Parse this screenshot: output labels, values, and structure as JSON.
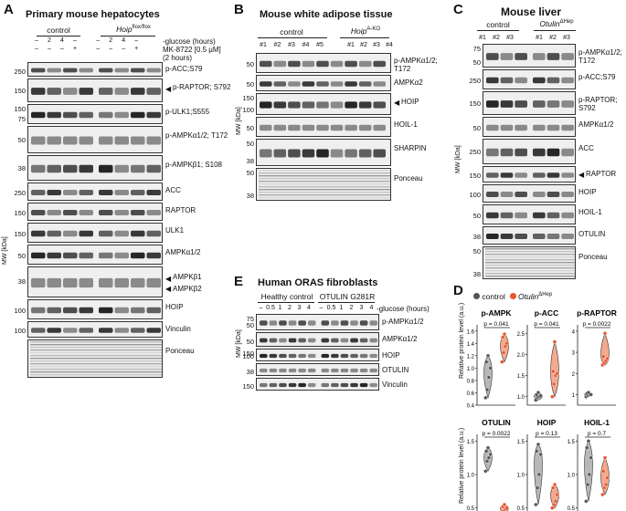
{
  "panelA": {
    "letter": "A",
    "title": "Primary mouse hepatocytes",
    "groups": [
      "control",
      "Hoip"
    ],
    "group_sup": "flox/flox",
    "cond1_label": "-glucose (hours)",
    "cond2_label": "MK-8722 [0.5 µM]",
    "cond2_sub": "(2 hours)",
    "cond1": [
      "–",
      "2",
      "4",
      "–",
      "–",
      "2",
      "4",
      "–"
    ],
    "cond2": [
      "–",
      "–",
      "–",
      "+",
      "–",
      "–",
      "–",
      "+"
    ],
    "mw_axis": "MW [kDa]",
    "blots": [
      {
        "label": "p-ACC;S79",
        "mw": [
          "250"
        ]
      },
      {
        "label": "p-RAPTOR; S792",
        "mw": [
          "150"
        ],
        "arrow": true
      },
      {
        "label": "p-ULK1;S555",
        "mw": [
          "150",
          "75"
        ]
      },
      {
        "label": "p-AMPKα1/2; T172",
        "mw": [
          "50"
        ]
      },
      {
        "label": "p-AMPKβ1; S108",
        "mw": [
          "38"
        ]
      },
      {
        "label": "ACC",
        "mw": [
          "250"
        ]
      },
      {
        "label": "RAPTOR",
        "mw": [
          "150"
        ]
      },
      {
        "label": "ULK1",
        "mw": [
          "150"
        ]
      },
      {
        "label": "AMPKα1/2",
        "mw": [
          "50"
        ]
      },
      {
        "label": "AMPKβ1",
        "mw": [
          "38"
        ],
        "arrow": true,
        "label2": "AMPKβ2"
      },
      {
        "label": "HOIP",
        "mw": [
          "100"
        ]
      },
      {
        "label": "Vinculin",
        "mw": [
          "100"
        ]
      },
      {
        "label": "Ponceau",
        "mw": []
      }
    ]
  },
  "panelB": {
    "letter": "B",
    "title": "Mouse white adipose tissue",
    "groups": [
      "control",
      "Hoip"
    ],
    "group_sup": "A-KO",
    "lanes": [
      "#1",
      "#2",
      "#3",
      "#4",
      "#5",
      "#1",
      "#2",
      "#3",
      "#4"
    ],
    "mw_axis": "MW [kDa]",
    "blots": [
      {
        "label": "p-AMPKα1/2; T172",
        "mw": [
          "50"
        ]
      },
      {
        "label": "AMPKα2",
        "mw": [
          "50"
        ]
      },
      {
        "label": "HOIP",
        "mw": [
          "150",
          "100"
        ],
        "arrow": true
      },
      {
        "label": "HOIL-1",
        "mw": [
          "50"
        ]
      },
      {
        "label": "SHARPIN",
        "mw": [
          "50",
          "38"
        ]
      },
      {
        "label": "Ponceau",
        "mw": [
          "50",
          "38"
        ]
      }
    ]
  },
  "panelC": {
    "letter": "C",
    "title": "Mouse liver",
    "groups": [
      "control",
      "Otulin"
    ],
    "group_sup": "ΔHep",
    "lanes": [
      "#1",
      "#2",
      "#3",
      "#1",
      "#2",
      "#3"
    ],
    "mw_axis": "MW [kDa]",
    "blots": [
      {
        "label": "p-AMPKα1/2; T172",
        "mw": [
          "75",
          "50"
        ]
      },
      {
        "label": "p-ACC;S79",
        "mw": [
          "250"
        ]
      },
      {
        "label": "p-RAPTOR; S792",
        "mw": [
          "150"
        ]
      },
      {
        "label": "AMPKα1/2",
        "mw": [
          "50"
        ]
      },
      {
        "label": "ACC",
        "mw": [
          "250"
        ]
      },
      {
        "label": "RAPTOR",
        "mw": [
          "150"
        ],
        "arrow": true
      },
      {
        "label": "HOIP",
        "mw": [
          "100"
        ]
      },
      {
        "label": "HOIL-1",
        "mw": [
          "50"
        ]
      },
      {
        "label": "OTULIN",
        "mw": [
          "38"
        ]
      },
      {
        "label": "Ponceau",
        "mw": [
          "50",
          "38"
        ]
      }
    ]
  },
  "panelD": {
    "letter": "D",
    "legend": [
      "control",
      "Otulin"
    ],
    "legend_sup": "ΔHep",
    "ylabel": "Relative protein level (a.u.)",
    "colors": {
      "control": "#555555",
      "otulin": "#e8542c",
      "control_fill": "#b8b8b8",
      "otulin_fill": "#f2a98d"
    }
  },
  "panelE": {
    "letter": "E",
    "title": "Human ORAS fibroblasts",
    "groups": [
      "Healthy control",
      "OTULIN G281R"
    ],
    "cond_label": "-glucose (hours)",
    "lanes": [
      "–",
      "0.5",
      "1",
      "2",
      "3",
      "4",
      "–",
      "0.5",
      "1",
      "2",
      "3",
      "4"
    ],
    "mw_axis": "MW [kDa]",
    "blots": [
      {
        "label": "p-AMPKα1/2",
        "mw": [
          "75",
          "50"
        ]
      },
      {
        "label": "AMPKα1/2",
        "mw": [
          "50"
        ]
      },
      {
        "label": "HOIP",
        "mw": [
          "150",
          "100"
        ]
      },
      {
        "label": "OTULIN",
        "mw": [
          "38"
        ]
      },
      {
        "label": "Vinculin",
        "mw": [
          "150"
        ]
      }
    ]
  },
  "chart_data": [
    {
      "type": "scatter",
      "title": "p-AMPK",
      "pvalue": "p = 0.041",
      "ylim": [
        0.4,
        1.7
      ],
      "yticks": [
        "0.4",
        "0.6",
        "0.8",
        "1.0",
        "1.2",
        "1.4",
        "1.6"
      ],
      "series": [
        {
          "name": "control",
          "values": [
            0.52,
            0.65,
            0.85,
            1.0,
            1.1,
            1.2
          ]
        },
        {
          "name": "Otulin ΔHep",
          "values": [
            1.1,
            1.25,
            1.35,
            1.4,
            1.5,
            1.55
          ]
        }
      ]
    },
    {
      "type": "scatter",
      "title": "p-ACC",
      "pvalue": "p = 0.041",
      "ylim": [
        0.8,
        2.7
      ],
      "yticks": [
        "1.0",
        "1.5",
        "2.0",
        "2.5"
      ],
      "series": [
        {
          "name": "control",
          "values": [
            0.92,
            0.98,
            1.0,
            1.02,
            1.05,
            1.1
          ]
        },
        {
          "name": "Otulin ΔHep",
          "values": [
            1.0,
            1.3,
            1.5,
            1.55,
            1.6,
            2.3
          ]
        }
      ]
    },
    {
      "type": "scatter",
      "title": "p-RAPTOR",
      "pvalue": "p = 0.0022",
      "ylim": [
        0.5,
        4.3
      ],
      "yticks": [
        "1",
        "2",
        "3",
        "4"
      ],
      "series": [
        {
          "name": "control",
          "values": [
            0.9,
            0.95,
            1.0,
            1.0,
            1.05,
            1.1
          ]
        },
        {
          "name": "Otulin ΔHep",
          "values": [
            2.4,
            2.5,
            2.6,
            2.7,
            2.8,
            3.9
          ]
        }
      ]
    },
    {
      "type": "scatter",
      "title": "OTULIN",
      "pvalue": "p = 0.0022",
      "ylim": [
        0.4,
        1.6
      ],
      "yticks": [
        "0.5",
        "1.0",
        "1.5"
      ],
      "series": [
        {
          "name": "control",
          "values": [
            1.05,
            1.2,
            1.25,
            1.3,
            1.35,
            1.4
          ]
        },
        {
          "name": "Otulin ΔHep",
          "values": [
            0.42,
            0.45,
            0.48,
            0.5,
            0.52,
            0.55
          ]
        }
      ]
    },
    {
      "type": "scatter",
      "title": "HOIP",
      "pvalue": "p = 0.13",
      "ylim": [
        0.4,
        1.6
      ],
      "yticks": [
        "0.5",
        "1.0",
        "1.5"
      ],
      "series": [
        {
          "name": "control",
          "values": [
            0.55,
            0.8,
            1.0,
            1.3,
            1.35,
            1.45
          ]
        },
        {
          "name": "Otulin ΔHep",
          "values": [
            0.5,
            0.55,
            0.6,
            0.7,
            0.8,
            0.85
          ]
        }
      ]
    },
    {
      "type": "scatter",
      "title": "HOIL-1",
      "pvalue": "p = 0.7",
      "ylim": [
        0.4,
        1.6
      ],
      "yticks": [
        "0.5",
        "1.0",
        "1.5"
      ],
      "series": [
        {
          "name": "control",
          "values": [
            0.6,
            0.85,
            1.0,
            1.25,
            1.4,
            1.5
          ]
        },
        {
          "name": "Otulin ΔHep",
          "values": [
            0.7,
            0.8,
            0.85,
            0.95,
            1.05,
            1.25
          ]
        }
      ]
    }
  ]
}
